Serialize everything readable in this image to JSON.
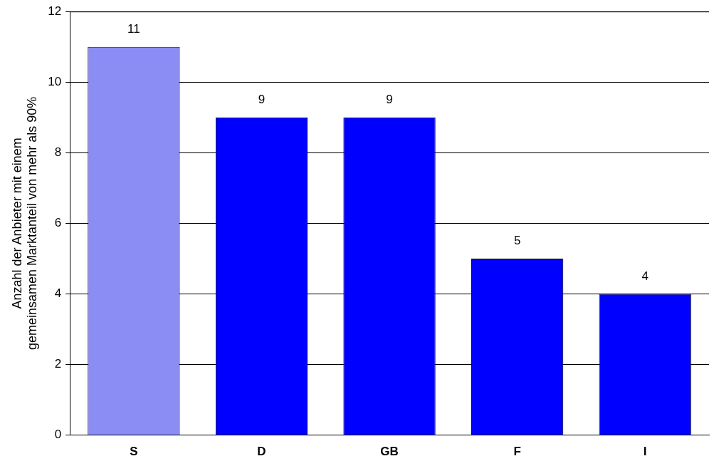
{
  "chart_data": {
    "type": "bar",
    "ylabel": "Anzahl der Anbieter mit einem gemeinsamen Marktanteil von mehr als 90%",
    "categories": [
      "S",
      "D",
      "GB",
      "F",
      "I"
    ],
    "values": [
      11,
      9,
      9,
      5,
      4
    ],
    "colors": [
      "#8c8cf5",
      "#0000ff",
      "#0000ff",
      "#0000ff",
      "#0000ff"
    ],
    "ylim": [
      0,
      12
    ],
    "yticks": [
      0,
      2,
      4,
      6,
      8,
      10,
      12
    ],
    "grid": "y",
    "data_labels": true,
    "legend": false
  }
}
